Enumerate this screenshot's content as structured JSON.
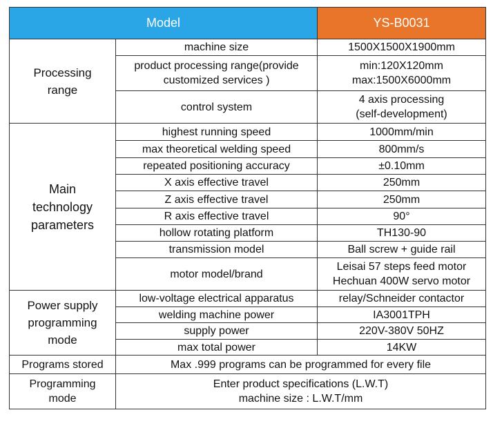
{
  "header": {
    "model_label": "Model",
    "model_value": "YS-B0031"
  },
  "processing_range": {
    "group_label_1": "Processing",
    "group_label_2": "range",
    "rows": [
      {
        "param": "machine size",
        "value": "1500X1500X1900mm"
      },
      {
        "param_1": "product processing range(provide",
        "param_2": "customized services )",
        "value_1": "min:120X120mm",
        "value_2": "max:1500X6000mm"
      },
      {
        "param": "control system",
        "value_1": "4 axis processing",
        "value_2": "(self-development)"
      }
    ]
  },
  "main_technology": {
    "group_label_1": "Main",
    "group_label_2": "technology",
    "group_label_3": "parameters",
    "rows": [
      {
        "param": "highest running speed",
        "value": "1000mm/min"
      },
      {
        "param": "max theoretical welding speed",
        "value": "800mm/s"
      },
      {
        "param": "repeated positioning accuracy",
        "value": "±0.10mm"
      },
      {
        "param": "X axis effective travel",
        "value": "250mm"
      },
      {
        "param": "Z axis effective travel",
        "value": "250mm"
      },
      {
        "param": "R axis effective travel",
        "value": "90°"
      },
      {
        "param": "hollow rotating platform",
        "value": "TH130-90"
      },
      {
        "param": "transmission model",
        "value": "Ball screw + guide rail"
      },
      {
        "param": "motor model/brand",
        "value_1": "Leisai 57 steps feed motor",
        "value_2": "Hechuan 400W servo motor"
      }
    ]
  },
  "power_supply": {
    "group_label_1": "Power supply",
    "group_label_2": "programming",
    "group_label_3": "mode",
    "rows": [
      {
        "param": "low-voltage electrical apparatus",
        "value": "relay/Schneider contactor"
      },
      {
        "param": "welding machine power",
        "value": "IA3001TPH"
      },
      {
        "param": "supply power",
        "value": "220V-380V 50HZ"
      },
      {
        "param": "max total power",
        "value": "14KW"
      }
    ]
  },
  "programs_stored": {
    "label": "Programs stored",
    "value": "Max .999 programs can be programmed for every file"
  },
  "programming_mode": {
    "label_1": "Programming",
    "label_2": "mode",
    "value_1": "Enter product specifications (L.W.T)",
    "value_2": "machine size : L.W.T/mm"
  },
  "colors": {
    "header_model_bg": "#2aa6e6",
    "header_value_bg": "#e8752a",
    "header_text": "#ffffff"
  }
}
